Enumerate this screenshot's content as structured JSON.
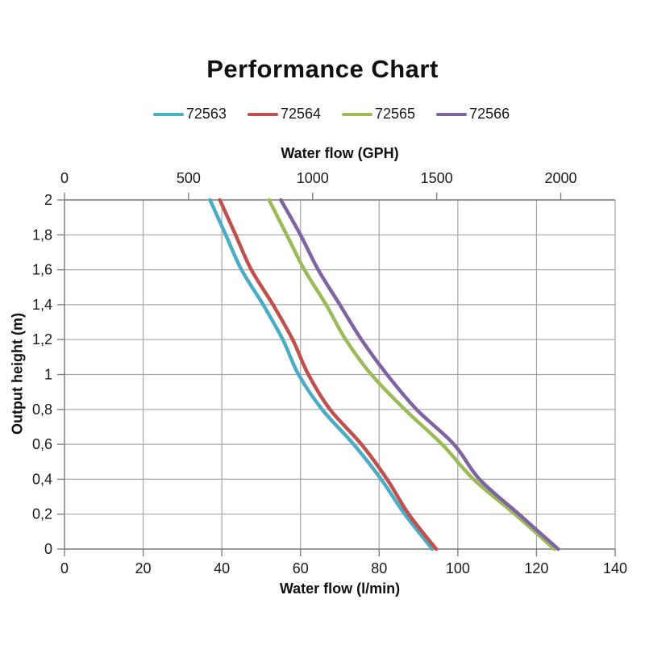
{
  "chart_data": {
    "type": "line",
    "title": "Performance Chart",
    "legend_position": "top",
    "grid": true,
    "x_axis_bottom": {
      "label": "Water flow (l/min)",
      "tick_values": [
        0,
        20,
        40,
        60,
        80,
        100,
        120,
        140
      ],
      "tick_labels": [
        "0",
        "20",
        "40",
        "60",
        "80",
        "100",
        "120",
        "140"
      ],
      "range": [
        0,
        140
      ]
    },
    "x_axis_top": {
      "label": "Water flow (GPH)",
      "tick_values": [
        0,
        500,
        1000,
        1500,
        2000
      ],
      "tick_labels": [
        "0",
        "500",
        "1000",
        "1500",
        "2000"
      ],
      "gph_to_lmin": 0.0630833
    },
    "y_axis": {
      "label": "Output height (m)",
      "tick_values": [
        2,
        1.8,
        1.6,
        1.4,
        1.2,
        1,
        0.8,
        0.6,
        0.4,
        0.2,
        0
      ],
      "tick_labels": [
        "2",
        "1,8",
        "1,6",
        "1,4",
        "1,2",
        "1",
        "0,8",
        "0,6",
        "0,4",
        "0,2",
        "0"
      ],
      "range": [
        0,
        2
      ]
    },
    "heights_m": [
      2,
      1.8,
      1.6,
      1.4,
      1.2,
      1,
      0.8,
      0.6,
      0.4,
      0.2,
      0
    ],
    "series": [
      {
        "name": "72563",
        "color": "#4BACC6",
        "flow_lmin": [
          37,
          41,
          45,
          50.5,
          55.5,
          59.5,
          65.5,
          73.5,
          80.5,
          86.5,
          93.5
        ]
      },
      {
        "name": "72564",
        "color": "#C0504D",
        "flow_lmin": [
          39.5,
          43.5,
          47.5,
          53,
          58,
          62,
          67.5,
          75.5,
          82,
          87.5,
          94.5
        ]
      },
      {
        "name": "72565",
        "color": "#9BBB59",
        "flow_lmin": [
          52,
          56.5,
          61,
          66.5,
          71.5,
          78,
          86.5,
          96,
          104,
          114.5,
          124.5
        ]
      },
      {
        "name": "72566",
        "color": "#8064A2",
        "flow_lmin": [
          55,
          60,
          64.5,
          70,
          75.5,
          82,
          89.5,
          99,
          105.5,
          115.5,
          125.5
        ]
      }
    ],
    "colors": {
      "gridline": "#a6a6a6",
      "axis": "#7f7f7f",
      "text": "#1a1a1a"
    }
  }
}
